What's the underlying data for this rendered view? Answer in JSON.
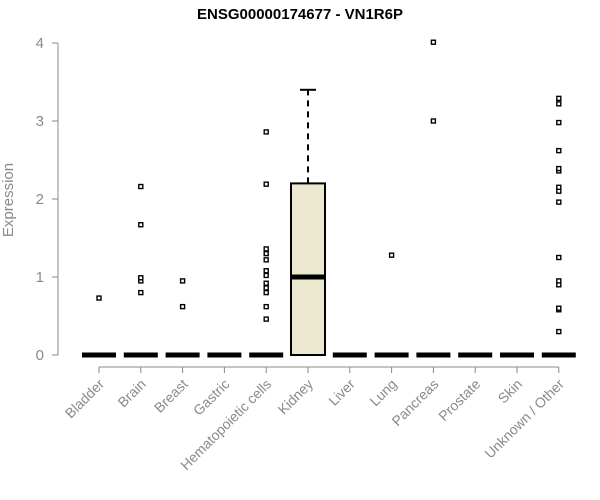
{
  "chart_data": {
    "type": "box",
    "title": "ENSG00000174677 - VN1R6P",
    "xlabel": "",
    "ylabel": "Expression",
    "ylim": [
      0,
      4
    ],
    "yticks": [
      "0",
      "1",
      "2",
      "3",
      "4"
    ],
    "categories": [
      "Bladder",
      "Brain",
      "Breast",
      "Gastric",
      "Hematopoietic cells",
      "Kidney",
      "Liver",
      "Lung",
      "Pancreas",
      "Prostate",
      "Skin",
      "Unknown / Other"
    ],
    "boxes": [
      {
        "category": "Bladder",
        "min": 0,
        "q1": 0,
        "median": 0,
        "q3": 0,
        "max": 0,
        "outliers": [
          0.73
        ]
      },
      {
        "category": "Brain",
        "min": 0,
        "q1": 0,
        "median": 0,
        "q3": 0,
        "max": 0,
        "outliers": [
          0.8,
          0.95,
          0.99,
          1.67,
          2.16
        ]
      },
      {
        "category": "Breast",
        "min": 0,
        "q1": 0,
        "median": 0,
        "q3": 0,
        "max": 0,
        "outliers": [
          0.62,
          0.95
        ]
      },
      {
        "category": "Gastric",
        "min": 0,
        "q1": 0,
        "median": 0,
        "q3": 0,
        "max": 0,
        "outliers": []
      },
      {
        "category": "Hematopoietic cells",
        "min": 0,
        "q1": 0,
        "median": 0,
        "q3": 0,
        "max": 0,
        "outliers": [
          0.46,
          0.62,
          0.8,
          0.86,
          0.92,
          1.02,
          1.08,
          1.22,
          1.3,
          1.36,
          2.19,
          2.86
        ]
      },
      {
        "category": "Kidney",
        "min": 0,
        "q1": 0,
        "median": 1.0,
        "q3": 2.2,
        "max": 3.4,
        "outliers": []
      },
      {
        "category": "Liver",
        "min": 0,
        "q1": 0,
        "median": 0,
        "q3": 0,
        "max": 0,
        "outliers": []
      },
      {
        "category": "Lung",
        "min": 0,
        "q1": 0,
        "median": 0,
        "q3": 0,
        "max": 0,
        "outliers": [
          1.28
        ]
      },
      {
        "category": "Pancreas",
        "min": 0,
        "q1": 0,
        "median": 0,
        "q3": 0,
        "max": 0,
        "outliers": [
          3.0,
          4.01
        ]
      },
      {
        "category": "Prostate",
        "min": 0,
        "q1": 0,
        "median": 0,
        "q3": 0,
        "max": 0,
        "outliers": []
      },
      {
        "category": "Skin",
        "min": 0,
        "q1": 0,
        "median": 0,
        "q3": 0,
        "max": 0,
        "outliers": []
      },
      {
        "category": "Unknown / Other",
        "min": 0,
        "q1": 0,
        "median": 0,
        "q3": 0,
        "max": 0,
        "outliers": [
          0.3,
          0.58,
          0.6,
          0.9,
          0.95,
          1.25,
          1.96,
          2.1,
          2.15,
          2.36,
          2.39,
          2.62,
          2.98,
          3.22,
          3.29
        ]
      }
    ],
    "box_fill": "#ede8d0",
    "grid": false,
    "legend": "none"
  }
}
